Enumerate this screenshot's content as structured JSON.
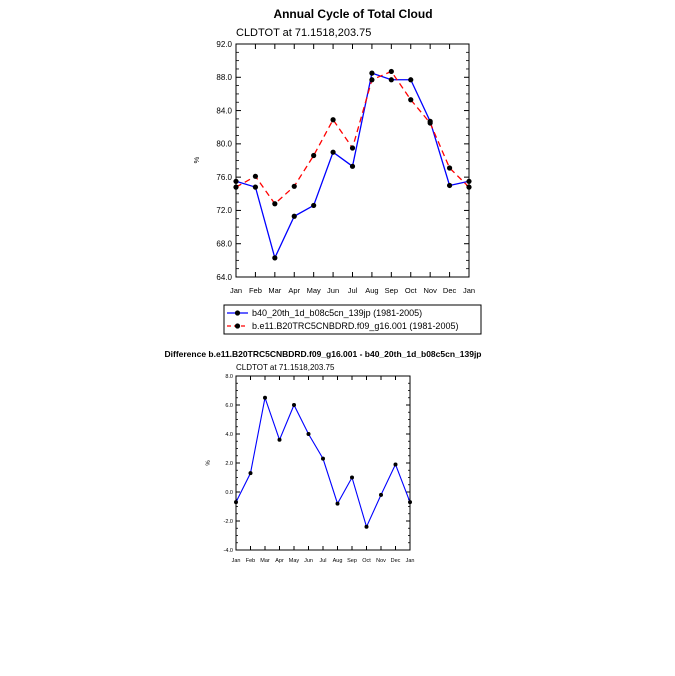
{
  "chart_data": [
    {
      "type": "line",
      "title": "Annual Cycle of Total Cloud",
      "subtitle": "CLDTOT at 71.1518,203.75",
      "ylabel": "%",
      "ylim": [
        64.0,
        92.0
      ],
      "yticks": [
        "64.0",
        "68.0",
        "72.0",
        "76.0",
        "80.0",
        "84.0",
        "88.0",
        "92.0"
      ],
      "categories": [
        "Jan",
        "Feb",
        "Mar",
        "Apr",
        "May",
        "Jun",
        "Jul",
        "Aug",
        "Sep",
        "Oct",
        "Nov",
        "Dec",
        "Jan"
      ],
      "series": [
        {
          "name": "b40_20th_1d_b08c5cn_139jp (1981-2005)",
          "color": "#0000ff",
          "dash": "solid",
          "values": [
            75.5,
            74.8,
            66.3,
            71.3,
            72.6,
            79.0,
            77.3,
            88.5,
            87.7,
            87.7,
            82.7,
            75.0,
            75.5
          ]
        },
        {
          "name": "b.e11.B20TRC5CNBDRD.f09_g16.001 (1981-2005)",
          "color": "#ff0000",
          "dash": "dashed",
          "values": [
            74.8,
            76.1,
            72.8,
            74.9,
            78.6,
            82.9,
            79.5,
            87.7,
            88.7,
            85.3,
            82.5,
            77.1,
            74.8
          ]
        }
      ]
    },
    {
      "type": "line",
      "title": "Difference b.e11.B20TRC5CNBDRD.f09_g16.001 - b40_20th_1d_b08c5cn_139jp",
      "subtitle": "CLDTOT at 71.1518,203.75",
      "ylabel": "%",
      "ylim": [
        -4.0,
        8.0
      ],
      "yticks": [
        "-4.0",
        "-2.0",
        "0.0",
        "2.0",
        "4.0",
        "6.0",
        "8.0"
      ],
      "categories": [
        "Jan",
        "Feb",
        "Mar",
        "Apr",
        "May",
        "Jun",
        "Jul",
        "Aug",
        "Sep",
        "Oct",
        "Nov",
        "Dec",
        "Jan"
      ],
      "series": [
        {
          "name": "Difference",
          "color": "#0000ff",
          "dash": "solid",
          "values": [
            -0.7,
            1.3,
            6.5,
            3.6,
            6.0,
            4.0,
            2.3,
            -0.8,
            1.0,
            -2.4,
            -0.2,
            1.9,
            -0.7
          ]
        }
      ]
    }
  ]
}
